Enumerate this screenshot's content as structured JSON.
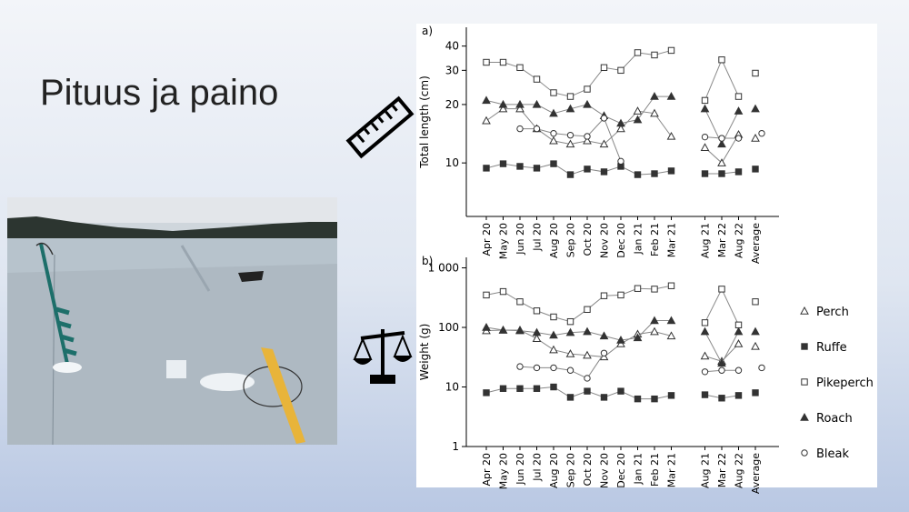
{
  "slide": {
    "title": "Pituus ja paino"
  },
  "chart_data": [
    {
      "type": "line",
      "panel": "a)",
      "ylabel": "Total length (cm)",
      "log_y": true,
      "categories": [
        "Apr 20",
        "May 20",
        "Jun 20",
        "Jul 20",
        "Aug 20",
        "Sep 20",
        "Oct 20",
        "Nov 20",
        "Dec 20",
        "Jan 21",
        "Feb 21",
        "Mar 21",
        null,
        "Aug 21",
        "Mar 22",
        "Aug 22",
        "Average"
      ],
      "ylim": [
        5.3,
        50
      ],
      "yticks": [
        10,
        20,
        30,
        40
      ],
      "series": [
        {
          "name": "Perch",
          "marker": "triangle-open",
          "color": "#333333",
          "values": [
            16.5,
            19,
            19,
            15,
            13,
            12.5,
            13,
            12.5,
            15,
            18.5,
            18,
            13.7,
            null,
            12,
            10,
            14,
            13.4
          ]
        },
        {
          "name": "Ruffe",
          "marker": "square-filled",
          "color": "#333333",
          "values": [
            9.4,
            9.9,
            9.6,
            9.4,
            9.9,
            8.7,
            9.3,
            9,
            9.6,
            8.7,
            8.8,
            9.1,
            null,
            8.8,
            8.8,
            9,
            9.3
          ]
        },
        {
          "name": "Pikeperch",
          "marker": "square-open",
          "color": "#333333",
          "values": [
            33,
            33,
            31,
            27,
            23,
            22,
            24,
            31,
            30,
            37,
            36,
            38,
            null,
            21,
            34,
            22,
            29
          ]
        },
        {
          "name": "Roach",
          "marker": "triangle-filled",
          "color": "#333333",
          "values": [
            21,
            20,
            20,
            20,
            18,
            19,
            20,
            17.5,
            16,
            16.7,
            22,
            22,
            null,
            19,
            12.5,
            18.5,
            19
          ]
        },
        {
          "name": "Bleak",
          "marker": "circle-open",
          "color": "#333333",
          "values": [
            null,
            null,
            15,
            15,
            14.2,
            13.9,
            13.7,
            17,
            10.2,
            null,
            null,
            null,
            null,
            13.6,
            13.4,
            13.4,
            14.2
          ]
        }
      ]
    },
    {
      "type": "line",
      "panel": "b)",
      "ylabel": "Weight (g)",
      "log_y": true,
      "categories": [
        "Apr 20",
        "May 20",
        "Jun 20",
        "Jul 20",
        "Aug 20",
        "Sep 20",
        "Oct 20",
        "Nov 20",
        "Dec 20",
        "Jan 21",
        "Feb 21",
        "Mar 21",
        null,
        "Aug 21",
        "Mar 22",
        "Aug 22",
        "Average"
      ],
      "ylim": [
        1,
        1500
      ],
      "yticks": [
        1,
        10,
        100,
        {
          "value": 1000,
          "label": "1 000"
        }
      ],
      "series": [
        {
          "name": "Perch",
          "marker": "triangle-open",
          "color": "#333333",
          "values": [
            88,
            90,
            90,
            65,
            42,
            36,
            34,
            32,
            53,
            77,
            85,
            72,
            null,
            33,
            27,
            53,
            48
          ]
        },
        {
          "name": "Ruffe",
          "marker": "square-filled",
          "color": "#333333",
          "values": [
            8,
            9.4,
            9.4,
            9.4,
            10,
            6.7,
            8.5,
            6.7,
            8.5,
            6.3,
            6.3,
            7.2,
            null,
            7.4,
            6.5,
            7.2,
            8
          ]
        },
        {
          "name": "Pikeperch",
          "marker": "square-open",
          "color": "#333333",
          "values": [
            350,
            400,
            270,
            190,
            150,
            125,
            200,
            340,
            350,
            450,
            440,
            500,
            null,
            120,
            440,
            110,
            270
          ]
        },
        {
          "name": "Roach",
          "marker": "triangle-filled",
          "color": "#333333",
          "values": [
            100,
            90,
            88,
            82,
            74,
            82,
            85,
            72,
            61,
            67,
            130,
            130,
            null,
            85,
            25,
            85,
            85
          ]
        },
        {
          "name": "Bleak",
          "marker": "circle-open",
          "color": "#333333",
          "values": [
            null,
            null,
            22,
            21,
            21,
            19,
            14,
            37,
            null,
            null,
            null,
            null,
            null,
            18,
            19,
            19,
            21
          ]
        }
      ]
    }
  ]
}
